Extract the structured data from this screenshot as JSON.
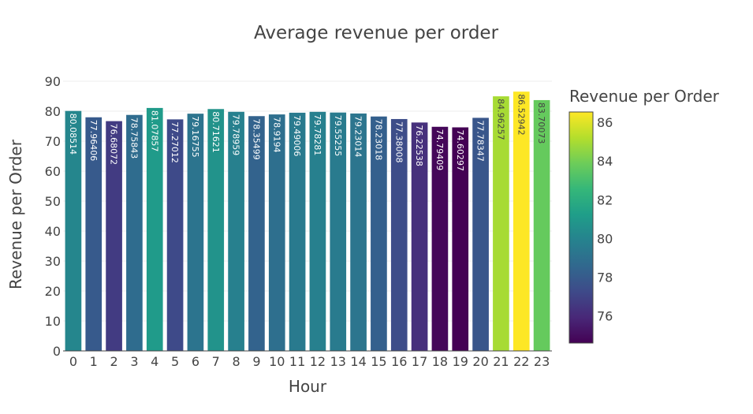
{
  "chart_data": {
    "type": "bar",
    "title": "Average revenue per order",
    "xlabel": "Hour",
    "ylabel": "Revenue per Order",
    "categories": [
      "0",
      "1",
      "2",
      "3",
      "4",
      "5",
      "6",
      "7",
      "8",
      "9",
      "10",
      "11",
      "12",
      "13",
      "14",
      "15",
      "16",
      "17",
      "18",
      "19",
      "20",
      "21",
      "22",
      "23"
    ],
    "values": [
      80.08514,
      77.96406,
      76.68072,
      78.75843,
      81.07857,
      77.27012,
      79.16755,
      80.71621,
      79.78959,
      78.35499,
      78.9194,
      79.49006,
      79.78281,
      79.55255,
      79.23014,
      78.23018,
      77.38008,
      76.22538,
      74.79409,
      74.60297,
      77.78347,
      84.96257,
      86.52942,
      83.70073
    ],
    "value_labels": [
      "80.08514",
      "77.96406",
      "76.68072",
      "78.75843",
      "81.07857",
      "77.27012",
      "79.16755",
      "80.71621",
      "79.78959",
      "78.35499",
      "78.9194",
      "79.49006",
      "79.78281",
      "79.55255",
      "79.23014",
      "78.23018",
      "77.38008",
      "76.22538",
      "74.79409",
      "74.60297",
      "77.78347",
      "84.96257",
      "86.52942",
      "83.70073"
    ],
    "ylim": [
      0,
      90
    ],
    "yticks": [
      0,
      10,
      20,
      30,
      40,
      50,
      60,
      70,
      80,
      90
    ],
    "grid": true,
    "colorscale": "Viridis",
    "colorbar": {
      "title": "Revenue per Order",
      "range": [
        74.60297,
        86.52942
      ],
      "ticks": [
        76,
        78,
        80,
        82,
        84,
        86
      ]
    }
  }
}
